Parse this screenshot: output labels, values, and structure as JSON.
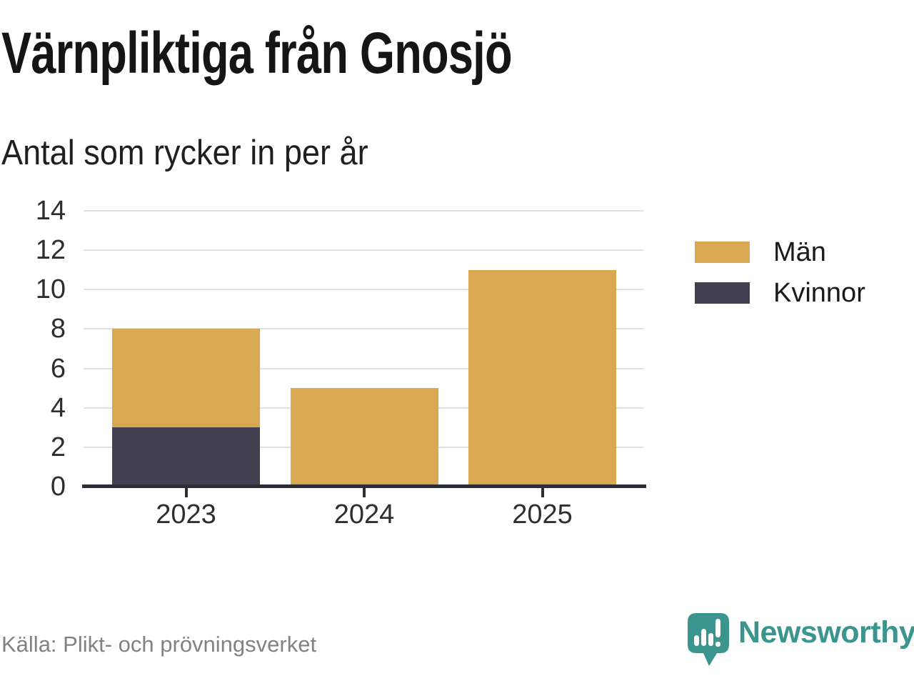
{
  "header": {
    "title": "Värnpliktiga från Gnosjö",
    "subtitle": "Antal som rycker in per år"
  },
  "chart_data": {
    "type": "bar",
    "stacked": true,
    "title": "Värnpliktiga från Gnosjö",
    "subtitle": "Antal som rycker in per år",
    "categories": [
      "2023",
      "2024",
      "2025"
    ],
    "series": [
      {
        "name": "Män",
        "color": "#d9a853",
        "values": [
          5,
          5,
          11
        ]
      },
      {
        "name": "Kvinnor",
        "color": "#413f50",
        "values": [
          3,
          0,
          0
        ]
      }
    ],
    "stack_order_bottom_to_top": [
      "Kvinnor",
      "Män"
    ],
    "totals": [
      8,
      5,
      11
    ],
    "xlabel": "",
    "ylabel": "",
    "ylim": [
      0,
      14
    ],
    "yticks": [
      0,
      2,
      4,
      6,
      8,
      10,
      12,
      14
    ],
    "grid": "horizontal",
    "legend_position": "right"
  },
  "footer": {
    "source": "Källa: Plikt- och prövningsverket",
    "brand": "Newsworthy",
    "brand_color": "#3a958e",
    "logo_icon": "speech-bubble-bar-chart-icon"
  },
  "colors": {
    "axis": "#2e2d36",
    "grid": "#e0e0e0",
    "tick_text": "#2e2e2e",
    "muted_text": "#828282"
  }
}
